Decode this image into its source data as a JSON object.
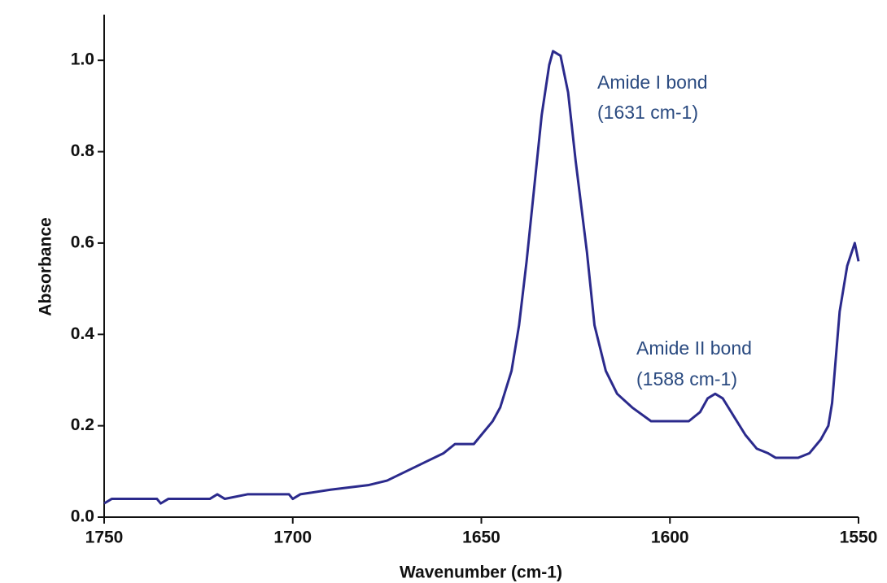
{
  "chart_data": {
    "type": "line",
    "xlabel": "Wavenumber (cm-1)",
    "ylabel": "Absorbance",
    "annotations": [
      "Amide I bond",
      "(1631 cm-1)",
      "Amide II bond",
      "(1588 cm-1)"
    ],
    "xlim": [
      1750,
      1550
    ],
    "ylim": [
      0,
      1.1
    ],
    "xticks": [
      1750,
      1700,
      1650,
      1600,
      1550
    ],
    "yticks": [
      {
        "value": 0,
        "label": "0.0"
      },
      0.2,
      0.4,
      0.6,
      0.8,
      {
        "value": 1,
        "label": "1.0"
      }
    ],
    "grid": false,
    "series": [
      {
        "name": "Absorbance",
        "color": "#2b2a8c",
        "x": [
          1750,
          1748,
          1736,
          1735,
          1733,
          1722,
          1720,
          1718,
          1712,
          1701,
          1700,
          1698,
          1690,
          1680,
          1675,
          1670,
          1665,
          1660,
          1657,
          1652,
          1650,
          1647,
          1645,
          1642,
          1640,
          1638,
          1636,
          1634,
          1632,
          1631,
          1629,
          1627,
          1625,
          1622,
          1620,
          1617,
          1614,
          1610,
          1605,
          1600,
          1595,
          1592,
          1590,
          1588,
          1586,
          1583,
          1580,
          1577,
          1574,
          1572,
          1566,
          1563,
          1560,
          1558,
          1557,
          1556,
          1555,
          1553,
          1551,
          1550
        ],
        "values": [
          0.03,
          0.04,
          0.04,
          0.03,
          0.04,
          0.04,
          0.05,
          0.04,
          0.05,
          0.05,
          0.04,
          0.05,
          0.06,
          0.07,
          0.08,
          0.1,
          0.12,
          0.14,
          0.16,
          0.16,
          0.18,
          0.21,
          0.24,
          0.32,
          0.42,
          0.56,
          0.72,
          0.88,
          0.99,
          1.02,
          1.01,
          0.93,
          0.78,
          0.58,
          0.42,
          0.32,
          0.27,
          0.24,
          0.21,
          0.21,
          0.21,
          0.23,
          0.26,
          0.27,
          0.26,
          0.22,
          0.18,
          0.15,
          0.14,
          0.13,
          0.13,
          0.14,
          0.17,
          0.2,
          0.25,
          0.35,
          0.45,
          0.55,
          0.6,
          0.56
        ]
      }
    ]
  }
}
